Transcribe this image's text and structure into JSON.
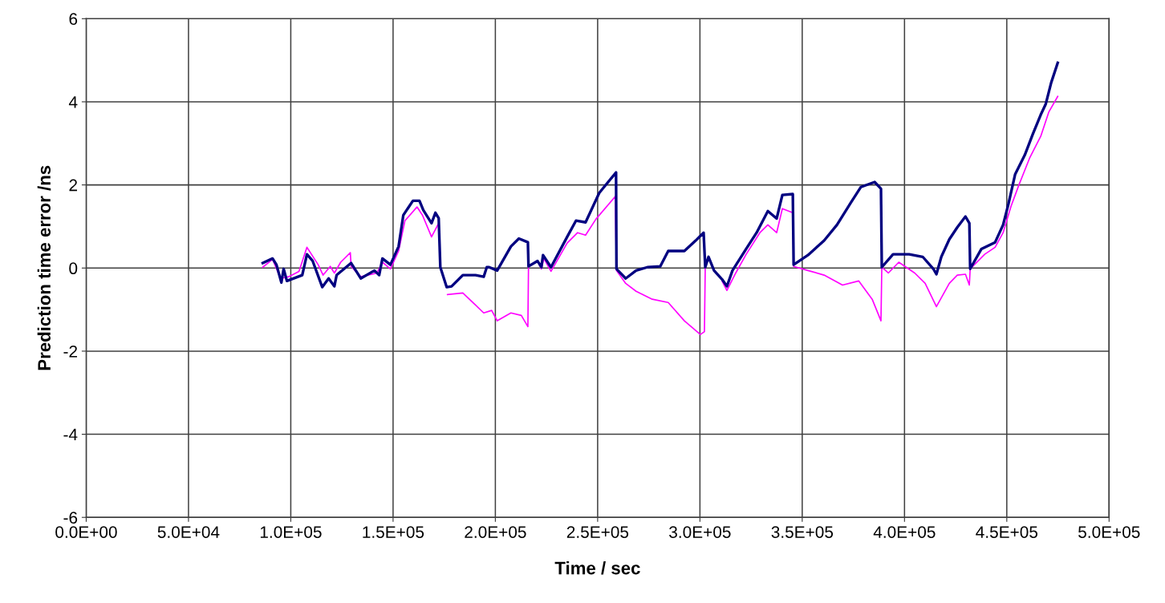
{
  "chart_data": {
    "type": "line",
    "xlabel": "Time / sec",
    "ylabel": "Prediction time error /ns",
    "xlim": [
      0,
      500000
    ],
    "ylim": [
      -6,
      6
    ],
    "xticks": [
      {
        "value": 0,
        "label": "0.0E+00"
      },
      {
        "value": 50000,
        "label": "5.0E+04"
      },
      {
        "value": 100000,
        "label": "1.0E+05"
      },
      {
        "value": 150000,
        "label": "1.5E+05"
      },
      {
        "value": 200000,
        "label": "2.0E+05"
      },
      {
        "value": 250000,
        "label": "2.5E+05"
      },
      {
        "value": 300000,
        "label": "3.0E+05"
      },
      {
        "value": 350000,
        "label": "3.5E+05"
      },
      {
        "value": 400000,
        "label": "4.0E+05"
      },
      {
        "value": 450000,
        "label": "4.5E+05"
      },
      {
        "value": 500000,
        "label": "5.0E+05"
      }
    ],
    "yticks": [
      -6,
      -4,
      -2,
      0,
      2,
      4,
      6
    ],
    "grid": true,
    "legend": false,
    "marker": "none",
    "line_style": "solid",
    "series": [
      {
        "color": "#ff00ff",
        "x": [
          86300,
          91100,
          95000,
          98900,
          104000,
          107900,
          113400,
          115800,
          119300,
          121300,
          124400,
          129100,
          129500,
          134200,
          142100,
          144800,
          148700,
          152700,
          155800,
          161700,
          164400,
          168800,
          172300,
          173500,
          176600,
          184100,
          190300,
          194300,
          198200,
          200900,
          207600,
          212700,
          215900,
          216200,
          220600,
          222500,
          223700,
          227200,
          235100,
          240200,
          244100,
          249200,
          258600,
          259200,
          263700,
          268800,
          276700,
          284500,
          292400,
          300200,
          302200,
          302600,
          304200,
          310800,
          313200,
          317500,
          322600,
          329300,
          333200,
          337500,
          340300,
          345400,
          345800,
          352800,
          360700,
          369700,
          377600,
          384200,
          388500,
          388900,
          392100,
          397200,
          405000,
          410100,
          415600,
          421900,
          425800,
          429800,
          431700,
          432100,
          439200,
          444300,
          448200,
          452100,
          456000,
          461100,
          466600,
          470500,
          474900
        ],
        "values": [
          0.02,
          0.21,
          -0.25,
          -0.21,
          -0.08,
          0.5,
          0.08,
          -0.17,
          0.04,
          -0.12,
          0.14,
          0.37,
          0.04,
          -0.21,
          -0.12,
          0.14,
          -0.02,
          0.41,
          1.14,
          1.47,
          1.27,
          0.75,
          1.08,
          null,
          -0.64,
          -0.6,
          -0.89,
          -1.08,
          -1.02,
          -1.27,
          -1.08,
          -1.14,
          -1.41,
          0.04,
          0.17,
          -0.02,
          0.23,
          -0.08,
          0.6,
          0.85,
          0.79,
          1.18,
          1.72,
          -0.06,
          -0.37,
          -0.56,
          -0.75,
          -0.83,
          -1.27,
          -1.6,
          -1.53,
          0.02,
          null,
          -0.31,
          -0.54,
          -0.12,
          0.33,
          0.85,
          1.04,
          0.85,
          1.43,
          1.33,
          0.04,
          -0.06,
          -0.17,
          -0.41,
          -0.31,
          -0.75,
          -1.27,
          0.02,
          -0.12,
          0.14,
          -0.12,
          -0.37,
          -0.93,
          -0.37,
          -0.17,
          -0.15,
          -0.41,
          -0.02,
          0.33,
          0.5,
          0.85,
          1.49,
          2.01,
          2.64,
          3.17,
          3.75,
          4.13
        ]
      },
      {
        "color": "#000080",
        "x": [
          86300,
          91100,
          93000,
          95400,
          96500,
          98100,
          105600,
          107900,
          110700,
          115400,
          118500,
          121300,
          122400,
          129500,
          134200,
          140900,
          143200,
          144800,
          148700,
          152700,
          155000,
          159700,
          162900,
          164800,
          168800,
          170700,
          172300,
          173100,
          176200,
          178600,
          184100,
          190300,
          194300,
          195800,
          197000,
          200900,
          207600,
          211500,
          215900,
          216200,
          220600,
          222500,
          223300,
          227200,
          235100,
          239400,
          244100,
          250800,
          259000,
          259200,
          263700,
          268800,
          274300,
          280600,
          284500,
          292400,
          297900,
          301800,
          302600,
          304200,
          306900,
          310800,
          313200,
          315900,
          322600,
          327700,
          333200,
          337500,
          340300,
          345400,
          345800,
          352800,
          360700,
          367000,
          373600,
          378700,
          385400,
          388500,
          388900,
          394400,
          402300,
          408900,
          414100,
          415600,
          418000,
          421900,
          425800,
          429800,
          431700,
          432100,
          437600,
          444300,
          448200,
          450900,
          454100,
          458800,
          462700,
          466600,
          469000,
          471700,
          474900
        ],
        "values": [
          0.12,
          0.23,
          0.08,
          -0.35,
          -0.02,
          -0.31,
          -0.17,
          0.33,
          0.17,
          -0.46,
          -0.25,
          -0.44,
          -0.17,
          0.12,
          -0.25,
          -0.06,
          -0.17,
          0.23,
          0.08,
          0.52,
          1.27,
          1.62,
          1.62,
          1.39,
          1.08,
          1.33,
          1.2,
          0.02,
          -0.46,
          -0.44,
          -0.17,
          -0.17,
          -0.21,
          0.02,
          0.02,
          -0.06,
          0.52,
          0.71,
          0.62,
          0.04,
          0.17,
          0.02,
          0.31,
          0.02,
          0.75,
          1.14,
          1.1,
          1.81,
          2.3,
          -0.02,
          -0.25,
          -0.06,
          0.02,
          0.04,
          0.41,
          0.41,
          0.66,
          0.85,
          0.02,
          0.27,
          -0.06,
          -0.27,
          -0.44,
          -0.06,
          0.46,
          0.85,
          1.37,
          1.19,
          1.76,
          1.78,
          0.08,
          0.31,
          0.66,
          1.04,
          1.56,
          1.95,
          2.07,
          1.91,
          0.02,
          0.33,
          0.33,
          0.27,
          -0.02,
          -0.15,
          0.27,
          0.69,
          0.98,
          1.24,
          1.08,
          -0.02,
          0.46,
          0.62,
          1.04,
          1.56,
          2.26,
          2.72,
          3.22,
          3.69,
          3.94,
          4.46,
          4.94
        ]
      }
    ]
  }
}
